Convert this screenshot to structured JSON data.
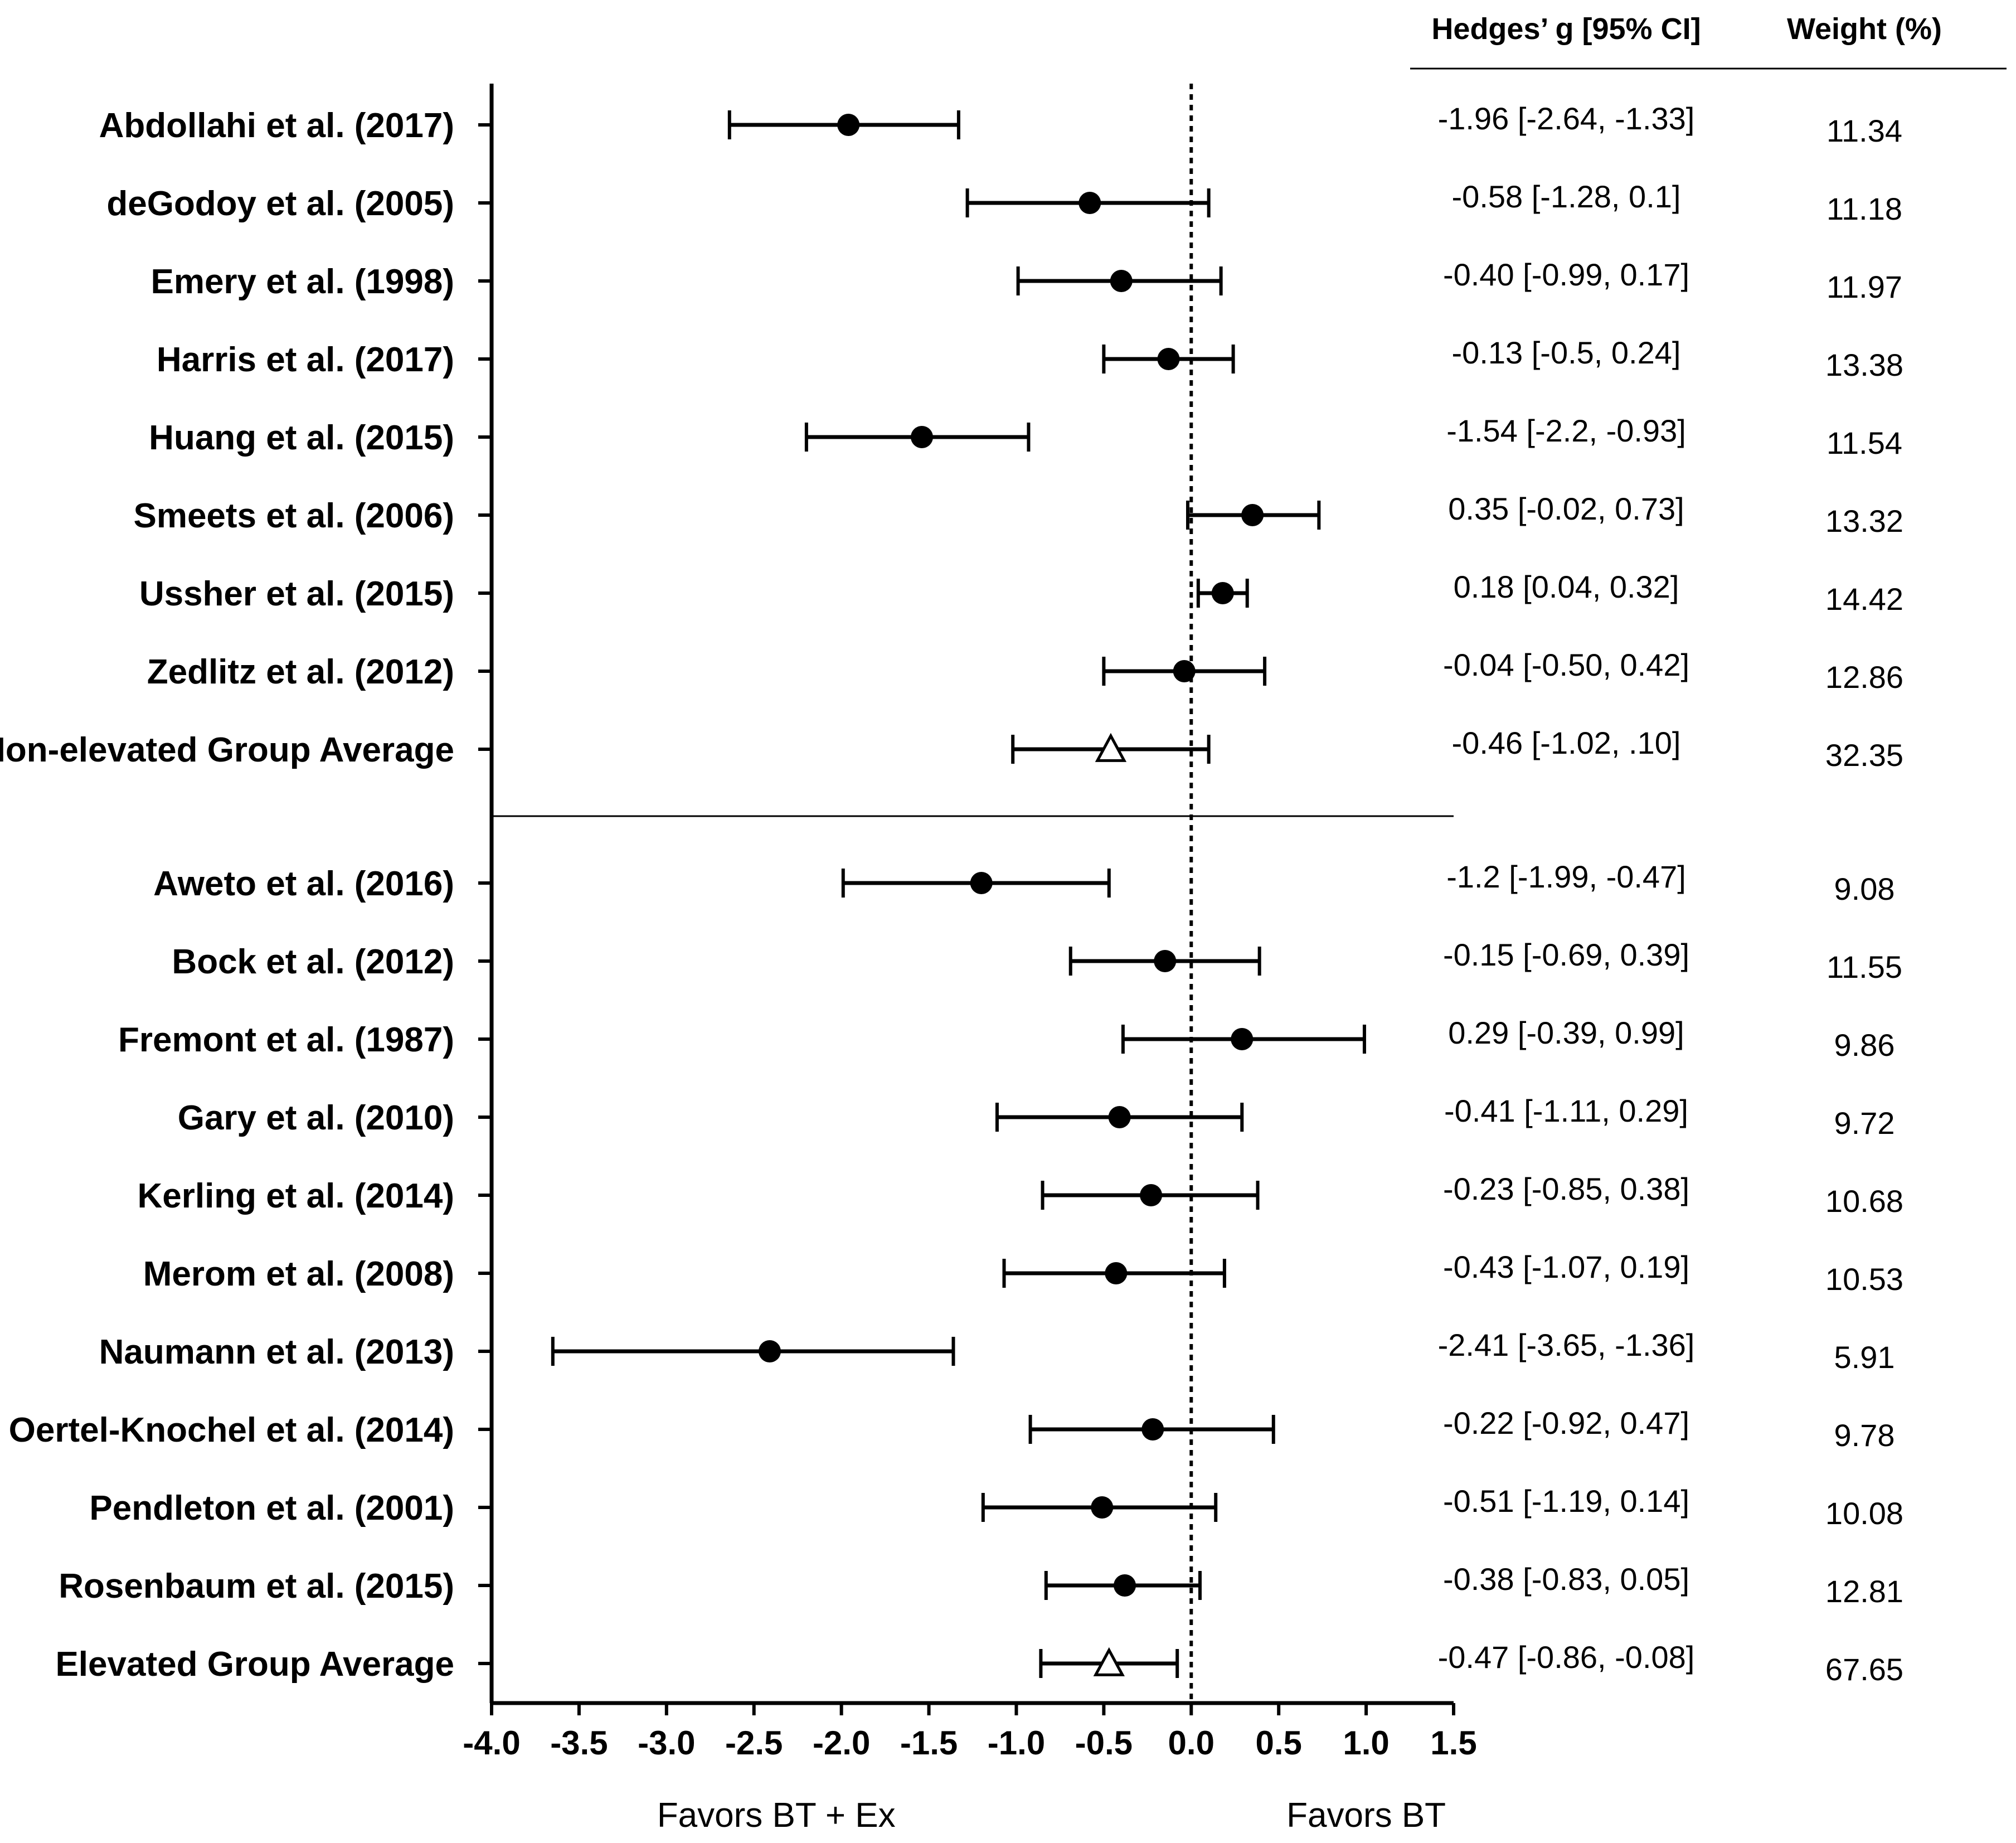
{
  "chart_data": {
    "type": "forest",
    "column_headers": {
      "effect": "Hedges’ g [95% CI]",
      "weight": "Weight (%)"
    },
    "x_axis": {
      "range": [
        -4.0,
        1.5
      ],
      "ticks": [
        "-4.0",
        "-3.5",
        "-3.0",
        "-2.5",
        "-2.0",
        "-1.5",
        "-1.0",
        "-0.5",
        "0.0",
        "0.5",
        "1.0",
        "1.5"
      ],
      "reference_line": 0.0,
      "label_left": "Favors BT + Ex",
      "label_right": "Favors BT"
    },
    "groups": [
      {
        "name": "non-elevated",
        "studies": [
          {
            "label": "Abdollahi et al. (2017)",
            "g": -1.96,
            "lo": -2.64,
            "hi": -1.33,
            "ci_text": "-1.96 [-2.64, -1.33]",
            "weight": "11.34"
          },
          {
            "label": "deGodoy et al. (2005)",
            "g": -0.58,
            "lo": -1.28,
            "hi": 0.1,
            "ci_text": "-0.58 [-1.28, 0.1]",
            "weight": "11.18"
          },
          {
            "label": "Emery et al. (1998)",
            "g": -0.4,
            "lo": -0.99,
            "hi": 0.17,
            "ci_text": "-0.40 [-0.99, 0.17]",
            "weight": "11.97"
          },
          {
            "label": "Harris et al. (2017)",
            "g": -0.13,
            "lo": -0.5,
            "hi": 0.24,
            "ci_text": "-0.13 [-0.5, 0.24]",
            "weight": "13.38"
          },
          {
            "label": "Huang et al. (2015)",
            "g": -1.54,
            "lo": -2.2,
            "hi": -0.93,
            "ci_text": "-1.54 [-2.2, -0.93]",
            "weight": "11.54"
          },
          {
            "label": "Smeets et al. (2006)",
            "g": 0.35,
            "lo": -0.02,
            "hi": 0.73,
            "ci_text": "0.35 [-0.02, 0.73]",
            "weight": "13.32"
          },
          {
            "label": "Ussher et al. (2015)",
            "g": 0.18,
            "lo": 0.04,
            "hi": 0.32,
            "ci_text": "0.18 [0.04, 0.32]",
            "weight": "14.42"
          },
          {
            "label": "Zedlitz et al. (2012)",
            "g": -0.04,
            "lo": -0.5,
            "hi": 0.42,
            "ci_text": "-0.04 [-0.50, 0.42]",
            "weight": "12.86"
          }
        ],
        "average": {
          "label": "Non-elevated Group Average",
          "g": -0.46,
          "lo": -1.02,
          "hi": 0.1,
          "ci_text": "-0.46 [-1.02, .10]",
          "weight": "32.35"
        }
      },
      {
        "name": "elevated",
        "studies": [
          {
            "label": "Aweto et al. (2016)",
            "g": -1.2,
            "lo": -1.99,
            "hi": -0.47,
            "ci_text": "-1.2 [-1.99, -0.47]",
            "weight": "9.08"
          },
          {
            "label": "Bock et al. (2012)",
            "g": -0.15,
            "lo": -0.69,
            "hi": 0.39,
            "ci_text": "-0.15 [-0.69, 0.39]",
            "weight": "11.55"
          },
          {
            "label": "Fremont et al. (1987)",
            "g": 0.29,
            "lo": -0.39,
            "hi": 0.99,
            "ci_text": "0.29 [-0.39, 0.99]",
            "weight": "9.86"
          },
          {
            "label": "Gary et al. (2010)",
            "g": -0.41,
            "lo": -1.11,
            "hi": 0.29,
            "ci_text": "-0.41 [-1.11, 0.29]",
            "weight": "9.72"
          },
          {
            "label": "Kerling et al. (2014)",
            "g": -0.23,
            "lo": -0.85,
            "hi": 0.38,
            "ci_text": "-0.23 [-0.85, 0.38]",
            "weight": "10.68"
          },
          {
            "label": "Merom et al. (2008)",
            "g": -0.43,
            "lo": -1.07,
            "hi": 0.19,
            "ci_text": "-0.43 [-1.07, 0.19]",
            "weight": "10.53"
          },
          {
            "label": "Naumann et al. (2013)",
            "g": -2.41,
            "lo": -3.65,
            "hi": -1.36,
            "ci_text": "-2.41 [-3.65, -1.36]",
            "weight": "5.91"
          },
          {
            "label": "Oertel-Knochel et al. (2014)",
            "g": -0.22,
            "lo": -0.92,
            "hi": 0.47,
            "ci_text": "-0.22 [-0.92, 0.47]",
            "weight": "9.78"
          },
          {
            "label": "Pendleton et al. (2001)",
            "g": -0.51,
            "lo": -1.19,
            "hi": 0.14,
            "ci_text": "-0.51 [-1.19, 0.14]",
            "weight": "10.08"
          },
          {
            "label": "Rosenbaum et al. (2015)",
            "g": -0.38,
            "lo": -0.83,
            "hi": 0.05,
            "ci_text": "-0.38 [-0.83, 0.05]",
            "weight": "12.81"
          }
        ],
        "average": {
          "label": "Elevated Group Average",
          "g": -0.47,
          "lo": -0.86,
          "hi": -0.08,
          "ci_text": "-0.47 [-0.86, -0.08]",
          "weight": "67.65"
        }
      }
    ]
  }
}
